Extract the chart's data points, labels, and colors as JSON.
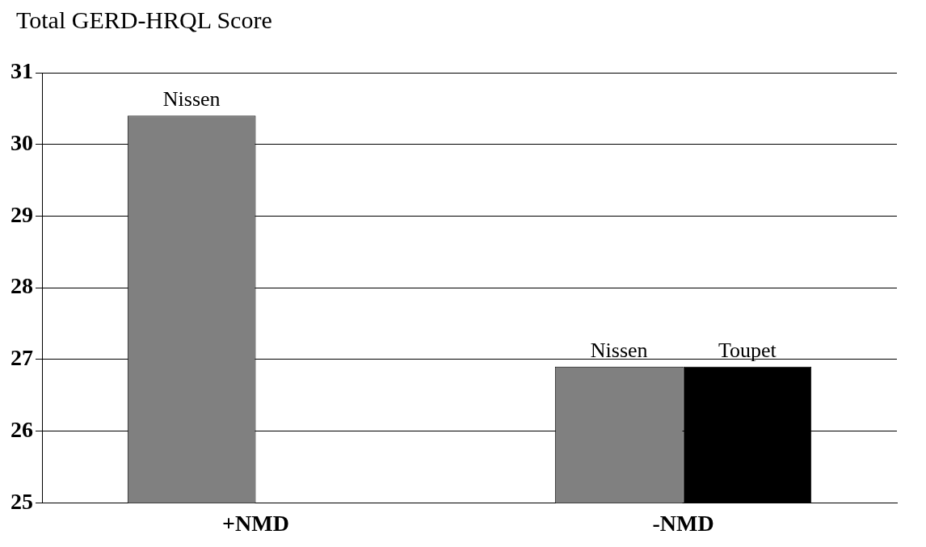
{
  "chart_data": {
    "type": "bar",
    "title": "Total GERD-HRQL Score",
    "categories": [
      "+NMD",
      "-NMD"
    ],
    "series": [
      {
        "name": "Nissen",
        "color": "#808080",
        "values": [
          30.4,
          26.9
        ]
      },
      {
        "name": "Toupet",
        "color": "#000000",
        "values": [
          null,
          26.9
        ]
      }
    ],
    "ylim": [
      25,
      31
    ],
    "yticks": [
      25,
      26,
      27,
      28,
      29,
      30,
      31
    ],
    "grid": "y",
    "legend": false
  }
}
